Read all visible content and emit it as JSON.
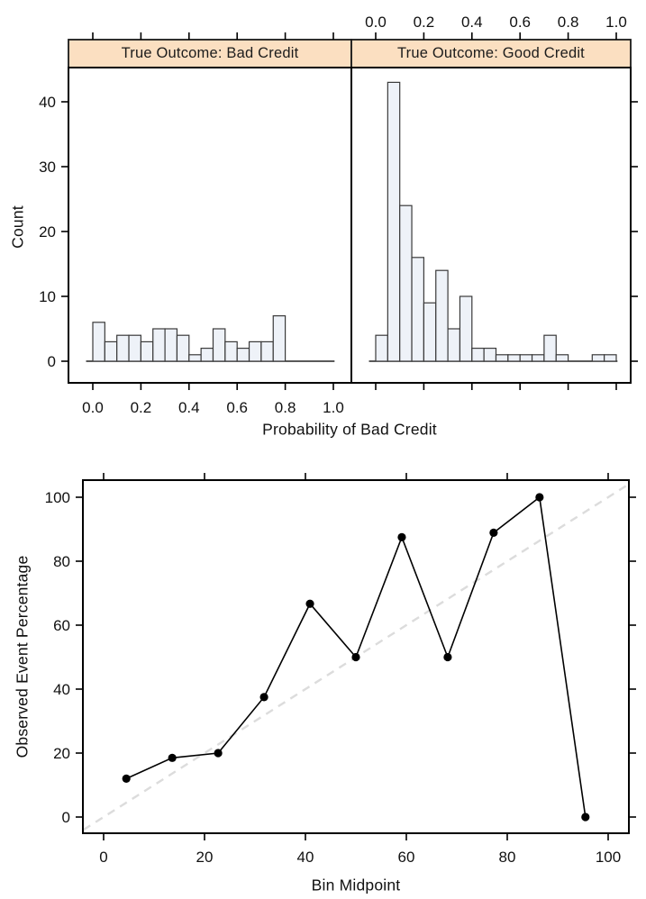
{
  "figure": {
    "top": {
      "strip_left": "True Outcome: Bad Credit",
      "strip_right": "True Outcome: Good Credit",
      "xlabel": "Probability of Bad Credit",
      "ylabel": "Count"
    },
    "bottom": {
      "xlabel": "Bin Midpoint",
      "ylabel": "Observed Event Percentage"
    }
  },
  "chart_data": [
    {
      "type": "bar",
      "subtype": "lattice-histogram",
      "title": "",
      "xlabel": "Probability of Bad Credit",
      "ylabel": "Count",
      "bin_start": 0.0,
      "bin_width": 0.05,
      "panels": [
        {
          "label": "True Outcome: Bad Credit",
          "counts": [
            6,
            3,
            4,
            4,
            3,
            5,
            5,
            4,
            1,
            2,
            5,
            3,
            2,
            3,
            3,
            7,
            0,
            0,
            0,
            0
          ]
        },
        {
          "label": "True Outcome: Good Credit",
          "counts": [
            4,
            43,
            24,
            16,
            9,
            14,
            5,
            10,
            2,
            2,
            1,
            1,
            1,
            1,
            4,
            1,
            0,
            0,
            1,
            1
          ]
        }
      ],
      "x_ticks": [
        0.0,
        0.2,
        0.4,
        0.6,
        0.8,
        1.0
      ],
      "x_tick_labels": [
        "0.0",
        "0.2",
        "0.4",
        "0.6",
        "0.8",
        "1.0"
      ],
      "y_ticks": [
        0,
        10,
        20,
        30,
        40
      ],
      "y_tick_labels": [
        "0",
        "10",
        "20",
        "30",
        "40"
      ],
      "xlim": [
        -0.101,
        1.075
      ],
      "ylim": [
        -3.33,
        45.3
      ],
      "grid": false,
      "bar_fill": "#eef2f8",
      "bar_stroke": "#3a3a3a",
      "strip_fill": "#fbdfc1",
      "strip_stroke": "#1a1a1a",
      "top_axis_labels_panel": "right",
      "bottom_axis_labels_panel": "left"
    },
    {
      "type": "line",
      "subtype": "calibration-plot",
      "title": "",
      "xlabel": "Bin Midpoint",
      "ylabel": "Observed Event Percentage",
      "x": [
        4.5,
        13.6,
        22.7,
        31.8,
        40.9,
        50,
        59.1,
        68.2,
        77.3,
        86.4,
        95.5
      ],
      "y": [
        12,
        18.5,
        20,
        37.5,
        66.7,
        50,
        87.5,
        50,
        88.9,
        100,
        0
      ],
      "x_ticks": [
        0,
        20,
        40,
        60,
        80,
        100
      ],
      "x_tick_labels": [
        "0",
        "20",
        "40",
        "60",
        "80",
        "100"
      ],
      "y_ticks": [
        0,
        20,
        40,
        60,
        80,
        100
      ],
      "y_tick_labels": [
        "0",
        "20",
        "40",
        "60",
        "80",
        "100"
      ],
      "xlim": [
        -4.1,
        104.1
      ],
      "ylim": [
        -5.1,
        105.4
      ],
      "grid": false,
      "line_color": "#000000",
      "point_color": "#000000",
      "reference_line": {
        "type": "diagonal-identity",
        "style": "dashed",
        "color": "#dcdcdc"
      }
    }
  ]
}
